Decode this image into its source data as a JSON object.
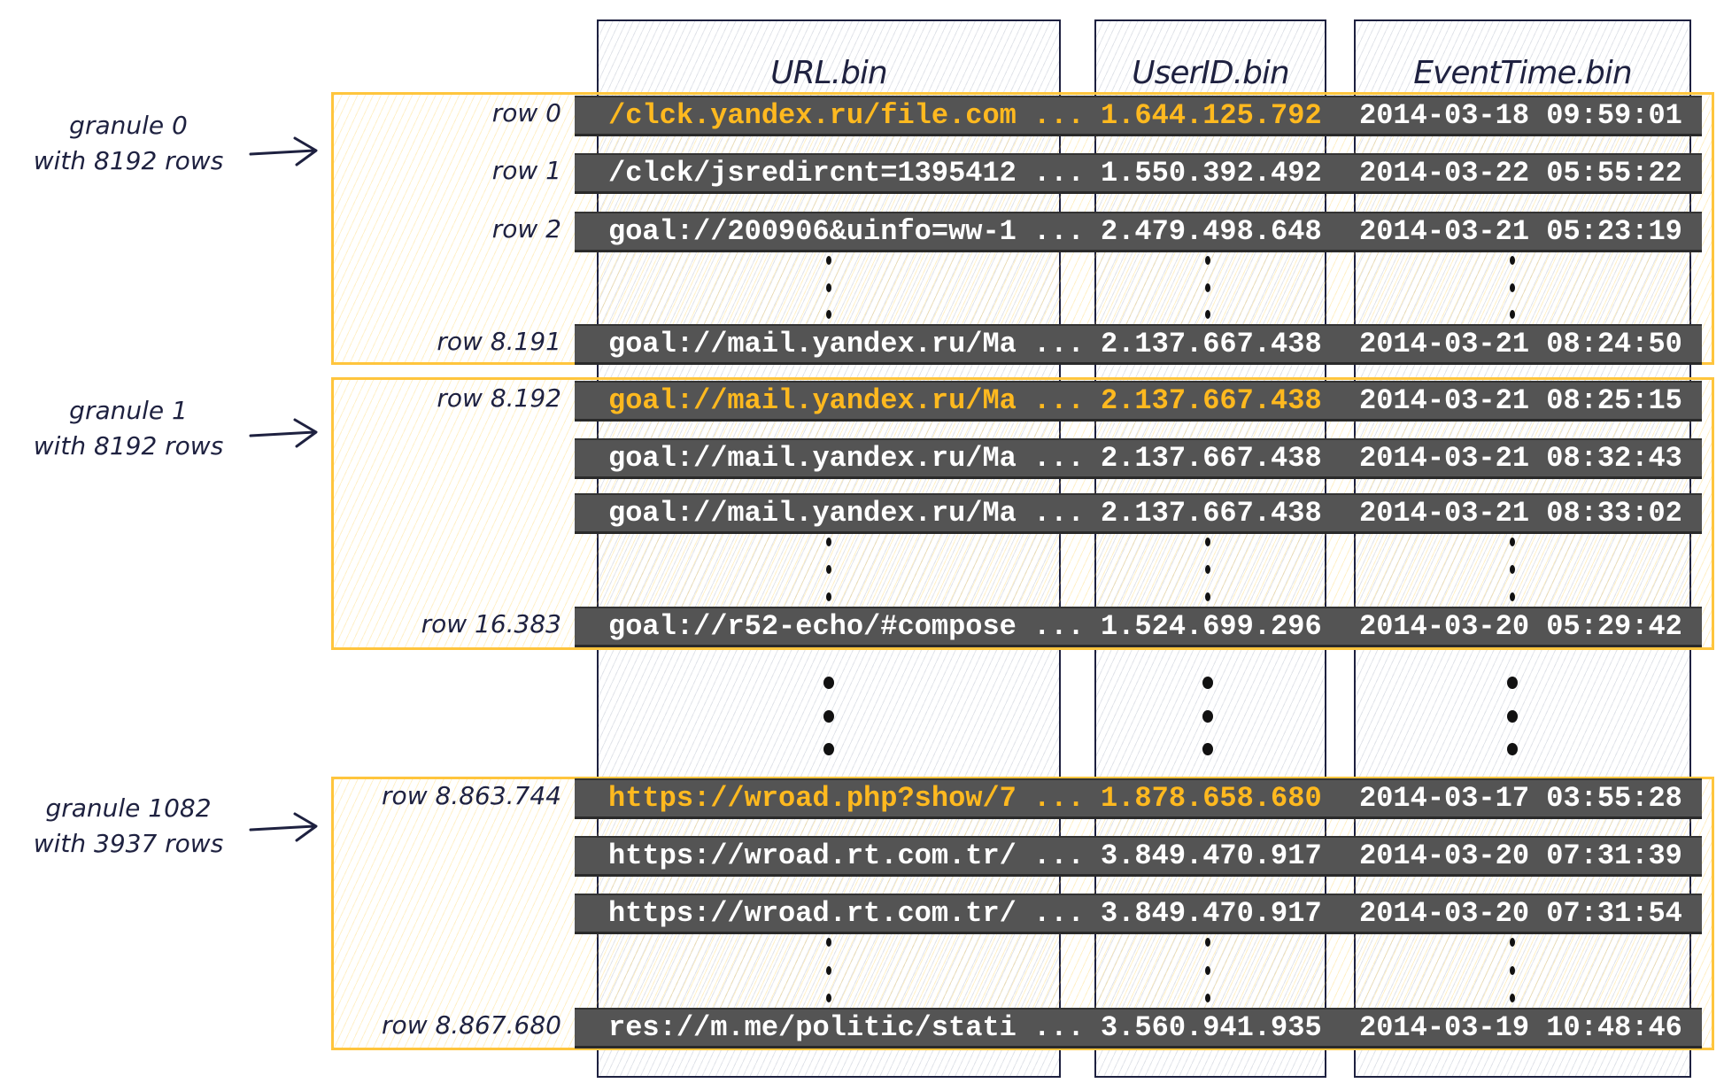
{
  "columns": [
    {
      "header": "URL.bin"
    },
    {
      "header": "UserID.bin"
    },
    {
      "header": "EventTime.bin"
    }
  ],
  "granules": [
    {
      "line1": "granule 0",
      "line2": "with 8192 rows",
      "rows": [
        {
          "label": "row 0",
          "url": "/clck.yandex.ru/file.com ...",
          "userid": "1.644.125.792",
          "time": "2014-03-18 09:59:01",
          "highlighted": true
        },
        {
          "label": "row 1",
          "url": "/clck/jsredircnt=1395412 ...",
          "userid": "1.550.392.492",
          "time": "2014-03-22 05:55:22",
          "highlighted": false
        },
        {
          "label": "row 2",
          "url": "goal://200906&uinfo=ww-1 ...",
          "userid": "2.479.498.648",
          "time": "2014-03-21 05:23:19",
          "highlighted": false
        },
        {
          "label": "row 8.191",
          "url": "goal://mail.yandex.ru/Ma ...",
          "userid": "2.137.667.438",
          "time": "2014-03-21 08:24:50",
          "highlighted": false
        }
      ]
    },
    {
      "line1": "granule 1",
      "line2": "with 8192 rows",
      "rows": [
        {
          "label": "row 8.192",
          "url": "goal://mail.yandex.ru/Ma ...",
          "userid": "2.137.667.438",
          "time": "2014-03-21 08:25:15",
          "highlighted": true
        },
        {
          "label": "",
          "url": "goal://mail.yandex.ru/Ma ...",
          "userid": "2.137.667.438",
          "time": "2014-03-21 08:32:43",
          "highlighted": false
        },
        {
          "label": "",
          "url": "goal://mail.yandex.ru/Ma ...",
          "userid": "2.137.667.438",
          "time": "2014-03-21 08:33:02",
          "highlighted": false
        },
        {
          "label": "row 16.383",
          "url": "goal://r52-echo/#compose ...",
          "userid": "1.524.699.296",
          "time": "2014-03-20 05:29:42",
          "highlighted": false
        }
      ]
    },
    {
      "line1": "granule 1082",
      "line2": "with 3937 rows",
      "rows": [
        {
          "label": "row 8.863.744",
          "url": "https://wroad.php?show/7 ...",
          "userid": "1.878.658.680",
          "time": "2014-03-17 03:55:28",
          "highlighted": true
        },
        {
          "label": "",
          "url": "https://wroad.rt.com.tr/ ...",
          "userid": "3.849.470.917",
          "time": "2014-03-20 07:31:39",
          "highlighted": false
        },
        {
          "label": "",
          "url": "https://wroad.rt.com.tr/ ...",
          "userid": "3.849.470.917",
          "time": "2014-03-20 07:31:54",
          "highlighted": false
        },
        {
          "label": "row 8.867.680",
          "url": "res://m.me/politic/stati ...",
          "userid": "3.560.941.935",
          "time": "2014-03-19 10:48:46",
          "highlighted": false
        }
      ]
    }
  ],
  "colors": {
    "highlight": "#ffb91f",
    "granule_border": "#ffc53d",
    "row_bar": "#545454",
    "ink": "#1e2140"
  }
}
